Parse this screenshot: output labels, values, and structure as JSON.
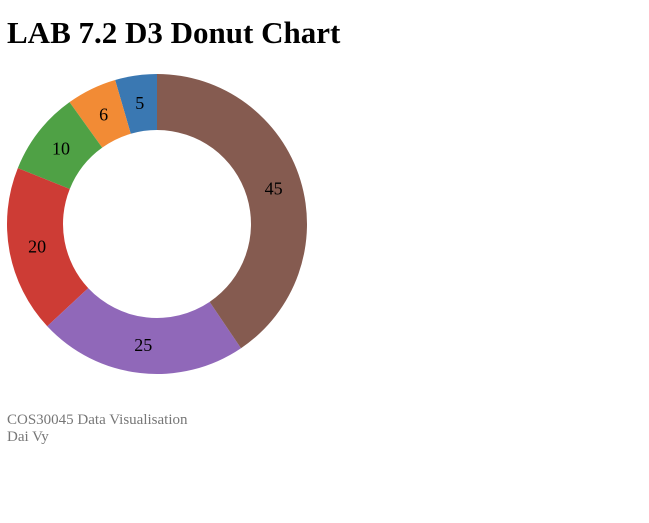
{
  "page": {
    "title": "LAB 7.2 D3 Donut Chart"
  },
  "chart_data": {
    "type": "pie",
    "variant": "donut",
    "values": [
      5,
      6,
      10,
      20,
      25,
      45
    ],
    "labels": [
      "5",
      "6",
      "10",
      "20",
      "25",
      "45"
    ],
    "colors": [
      "#3a78b2",
      "#f28b35",
      "#4fa145",
      "#cd3c35",
      "#9068b9",
      "#855b50"
    ],
    "order": "clockwise-from-top, sorted ascending from counter-clockwise side",
    "legend": "none"
  },
  "footer": {
    "line1": "COS30045 Data Visualisation",
    "line2": "Dai Vy"
  }
}
